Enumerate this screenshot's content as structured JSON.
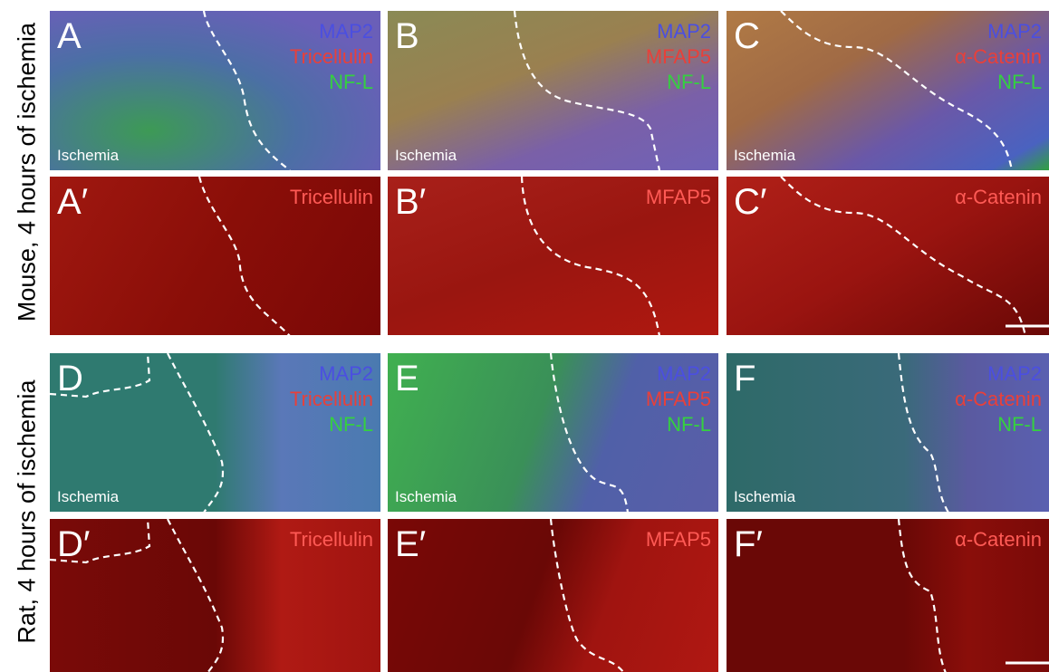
{
  "row_labels": [
    "Mouse, 4 hours of ischemia",
    "Rat, 4 hours of ischemia"
  ],
  "panels": [
    {
      "letter": "A",
      "labels": [
        {
          "text": "MAP2",
          "color": "#4b4fe0"
        },
        {
          "text": "Tricellulin",
          "color": "#e8403a"
        },
        {
          "text": "NF-L",
          "color": "#35d040"
        }
      ],
      "region": "Ischemia"
    },
    {
      "letter": "B",
      "labels": [
        {
          "text": "MAP2",
          "color": "#4b4fe0"
        },
        {
          "text": "MFAP5",
          "color": "#e8403a"
        },
        {
          "text": "NF-L",
          "color": "#35d040"
        }
      ],
      "region": "Ischemia"
    },
    {
      "letter": "C",
      "labels": [
        {
          "text": "MAP2",
          "color": "#4b4fe0"
        },
        {
          "text": "α-Catenin",
          "color": "#e8403a"
        },
        {
          "text": "NF-L",
          "color": "#35d040"
        }
      ],
      "region": "Ischemia"
    },
    {
      "letter": "A′",
      "labels": [
        {
          "text": "Tricellulin",
          "color": "#ff5a55"
        }
      ]
    },
    {
      "letter": "B′",
      "labels": [
        {
          "text": "MFAP5",
          "color": "#ff5a55"
        }
      ]
    },
    {
      "letter": "C′",
      "labels": [
        {
          "text": "α-Catenin",
          "color": "#ff5a55"
        }
      ]
    },
    {
      "letter": "D",
      "labels": [
        {
          "text": "MAP2",
          "color": "#4b4fe0"
        },
        {
          "text": "Tricellulin",
          "color": "#e8403a"
        },
        {
          "text": "NF-L",
          "color": "#35d040"
        }
      ],
      "region": "Ischemia"
    },
    {
      "letter": "E",
      "labels": [
        {
          "text": "MAP2",
          "color": "#4b4fe0"
        },
        {
          "text": "MFAP5",
          "color": "#e8403a"
        },
        {
          "text": "NF-L",
          "color": "#35d040"
        }
      ],
      "region": "Ischemia"
    },
    {
      "letter": "F",
      "labels": [
        {
          "text": "MAP2",
          "color": "#4b4fe0"
        },
        {
          "text": "α-Catenin",
          "color": "#e8403a"
        },
        {
          "text": "NF-L",
          "color": "#35d040"
        }
      ],
      "region": "Ischemia"
    },
    {
      "letter": "D′",
      "labels": [
        {
          "text": "Tricellulin",
          "color": "#ff5a55"
        }
      ]
    },
    {
      "letter": "E′",
      "labels": [
        {
          "text": "MFAP5",
          "color": "#ff5a55"
        }
      ]
    },
    {
      "letter": "F′",
      "labels": [
        {
          "text": "α-Catenin",
          "color": "#ff5a55"
        }
      ]
    }
  ]
}
